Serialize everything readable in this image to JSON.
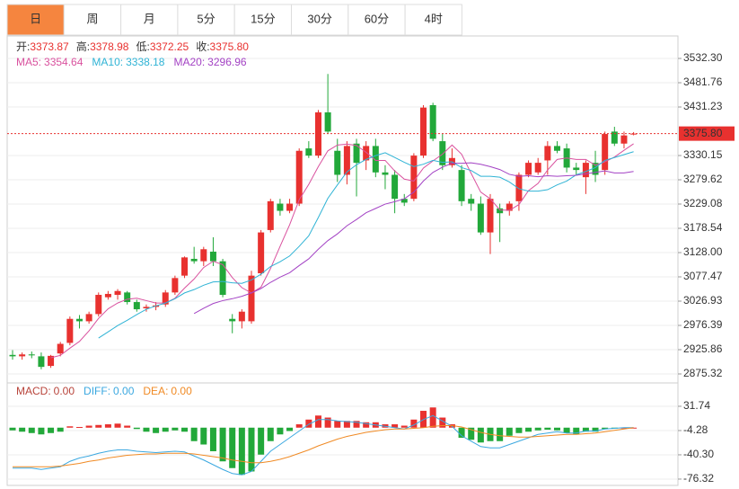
{
  "tabs": {
    "items": [
      "日",
      "周",
      "月",
      "5分",
      "15分",
      "30分",
      "60分",
      "4时"
    ],
    "active": 0
  },
  "chart_data": [
    {
      "type": "candlestick",
      "up_color": "#e8312f",
      "down_color": "#22a83a",
      "ohlc_legend": [
        "开:",
        "高:",
        "低:",
        "收:"
      ],
      "last_close_label": "3375.80",
      "open": [
        2915,
        2912,
        2916,
        2912,
        2892,
        2918,
        2940,
        2990,
        2985,
        3000,
        3035,
        3040,
        3045,
        3025,
        3012,
        3015,
        3020,
        3045,
        3080,
        3115,
        3110,
        3130,
        3110,
        2990,
        2985,
        2985,
        3085,
        3175,
        3230,
        3215,
        3230,
        3345,
        3330,
        3420,
        3340,
        3290,
        3355,
        3320,
        3350,
        3295,
        3290,
        3240,
        3240,
        3330,
        3435,
        3360,
        3310,
        3300,
        3240,
        3230,
        3170,
        3220,
        3215,
        3235,
        3290,
        3295,
        3320,
        3350,
        3345,
        3305,
        3285,
        3315,
        3300,
        3380,
        3355,
        3373.87
      ],
      "high": [
        2925,
        2920,
        2922,
        2920,
        2915,
        2942,
        2995,
        2998,
        3005,
        3045,
        3048,
        3052,
        3048,
        3030,
        3020,
        3025,
        3050,
        3080,
        3120,
        3140,
        3140,
        3160,
        3115,
        3000,
        3010,
        3090,
        3175,
        3240,
        3240,
        3240,
        3345,
        3360,
        3425,
        3500,
        3365,
        3360,
        3365,
        3360,
        3365,
        3310,
        3300,
        3250,
        3335,
        3435,
        3440,
        3375,
        3345,
        3310,
        3250,
        3245,
        3250,
        3230,
        3235,
        3295,
        3320,
        3325,
        3360,
        3360,
        3355,
        3315,
        3320,
        3340,
        3380,
        3390,
        3380,
        3378.98
      ],
      "low": [
        2905,
        2905,
        2908,
        2885,
        2888,
        2912,
        2935,
        2970,
        2980,
        2995,
        3030,
        3030,
        3020,
        3005,
        3005,
        3008,
        3015,
        3040,
        3075,
        3105,
        3100,
        3100,
        3035,
        2960,
        2970,
        2980,
        3080,
        3170,
        3205,
        3210,
        3225,
        3325,
        3325,
        3375,
        3275,
        3270,
        3245,
        3300,
        3285,
        3260,
        3210,
        3225,
        3235,
        3325,
        3360,
        3300,
        3305,
        3225,
        3215,
        3165,
        3125,
        3150,
        3205,
        3215,
        3285,
        3290,
        3290,
        3335,
        3295,
        3290,
        3250,
        3275,
        3290,
        3350,
        3345,
        3372.25
      ],
      "close": [
        2912,
        2916,
        2914,
        2890,
        2913,
        2938,
        2990,
        2985,
        3000,
        3040,
        3042,
        3048,
        3025,
        3010,
        3015,
        3018,
        3045,
        3075,
        3118,
        3110,
        3135,
        3110,
        3040,
        2985,
        3005,
        3080,
        3170,
        3235,
        3215,
        3230,
        3340,
        3330,
        3420,
        3380,
        3290,
        3350,
        3315,
        3350,
        3295,
        3290,
        3240,
        3232,
        3330,
        3430,
        3365,
        3310,
        3325,
        3235,
        3230,
        3170,
        3240,
        3210,
        3230,
        3290,
        3315,
        3315,
        3350,
        3340,
        3305,
        3300,
        3315,
        3290,
        3375,
        3355,
        3372,
        3375.8
      ],
      "series": [
        {
          "name": "MA5:",
          "color": "#d9519e",
          "values": [
            null,
            null,
            null,
            null,
            2909,
            2914,
            2929,
            2943,
            2965,
            2991,
            3011,
            3023,
            3031,
            3033,
            3028,
            3023,
            3023,
            3033,
            3054,
            3073,
            3097,
            3110,
            3103,
            3076,
            3055,
            3044,
            3056,
            3095,
            3141,
            3186,
            3238,
            3270,
            3307,
            3340,
            3352,
            3354,
            3351,
            3337,
            3320,
            3320,
            3298,
            3281,
            3277,
            3304,
            3319,
            3333,
            3352,
            3333,
            3293,
            3254,
            3240,
            3217,
            3216,
            3228,
            3257,
            3272,
            3300,
            3322,
            3325,
            3322,
            3322,
            3310,
            3317,
            3327,
            3341,
            3354.64
          ]
        },
        {
          "name": "MA10:",
          "color": "#2fb3d5",
          "values": [
            null,
            null,
            null,
            null,
            null,
            null,
            null,
            null,
            null,
            2950,
            2963,
            2976,
            2987,
            2999,
            3010,
            3017,
            3023,
            3032,
            3044,
            3051,
            3060,
            3067,
            3068,
            3065,
            3064,
            3071,
            3083,
            3099,
            3109,
            3121,
            3141,
            3163,
            3201,
            3241,
            3269,
            3296,
            3311,
            3322,
            3330,
            3336,
            3326,
            3316,
            3307,
            3312,
            3320,
            3316,
            3317,
            3305,
            3299,
            3287,
            3287,
            3285,
            3275,
            3261,
            3256,
            3256,
            3259,
            3269,
            3277,
            3290,
            3297,
            3305,
            3320,
            3326,
            3332,
            3338.18
          ]
        },
        {
          "name": "MA20:",
          "color": "#a342c4",
          "values": [
            null,
            null,
            null,
            null,
            null,
            null,
            null,
            null,
            null,
            null,
            null,
            null,
            null,
            null,
            null,
            null,
            null,
            null,
            null,
            3001,
            3012,
            3022,
            3028,
            3032,
            3037,
            3044,
            3053,
            3066,
            3077,
            3086,
            3101,
            3115,
            3135,
            3153,
            3167,
            3184,
            3197,
            3211,
            3220,
            3229,
            3234,
            3240,
            3254,
            3277,
            3295,
            3306,
            3314,
            3314,
            3315,
            3312,
            3307,
            3301,
            3291,
            3287,
            3288,
            3286,
            3288,
            3287,
            3288,
            3289,
            3292,
            3295,
            3298,
            3294,
            3294,
            3296.96
          ]
        }
      ],
      "ylim": [
        2856.6,
        3575.4
      ],
      "yticks": [
        {
          "value": 3532.3,
          "label": "3532.30"
        },
        3481.76,
        3431.23,
        3330.15,
        3279.62,
        3229.08,
        3178.54,
        {
          "value": 3128,
          "label": "3128.00"
        },
        3077.47,
        3026.93,
        2976.39,
        2925.86,
        2875.32
      ],
      "grid": true
    },
    {
      "type": "macd",
      "up_color": "#e8312f",
      "down_color": "#22a83a",
      "series": [
        {
          "name": "MACD:",
          "color": "#b8433a",
          "value_label": "0.00",
          "values": [
            -4,
            -6,
            -8,
            -10,
            -8,
            -6,
            2,
            1,
            3,
            4,
            5,
            6,
            3,
            -2,
            -6,
            -8,
            -6,
            -4,
            -6,
            -20,
            -25,
            -35,
            -50,
            -60,
            -70,
            -65,
            -40,
            -20,
            -10,
            -5,
            5,
            12,
            18,
            15,
            10,
            10,
            10,
            8,
            8,
            5,
            5,
            3,
            12,
            25,
            30,
            15,
            5,
            -15,
            -18,
            -22,
            -20,
            -20,
            -12,
            -8,
            -6,
            -4,
            -3,
            -4,
            -8,
            -10,
            -6,
            -6,
            -2,
            -1,
            0,
            0
          ]
        },
        {
          "name": "DIFF:",
          "color": "#3ba8e0",
          "value_label": "0.00",
          "values": [
            -60,
            -60,
            -60,
            -62,
            -60,
            -58,
            -50,
            -45,
            -42,
            -38,
            -35,
            -33,
            -33,
            -35,
            -36,
            -37,
            -36,
            -35,
            -36,
            -42,
            -48,
            -55,
            -62,
            -68,
            -70,
            -65,
            -50,
            -35,
            -25,
            -15,
            -5,
            5,
            12,
            12,
            10,
            9,
            8,
            6,
            4,
            2,
            0,
            -2,
            4,
            12,
            18,
            10,
            2,
            -12,
            -20,
            -28,
            -30,
            -30,
            -25,
            -20,
            -15,
            -10,
            -8,
            -6,
            -8,
            -8,
            -5,
            -5,
            -2,
            -1,
            0,
            0
          ]
        },
        {
          "name": "DEA:",
          "color": "#f08a24",
          "value_label": "0.00",
          "values": [
            -58,
            -58,
            -58,
            -58,
            -58,
            -57,
            -55,
            -53,
            -50,
            -48,
            -45,
            -43,
            -41,
            -40,
            -39,
            -39,
            -38,
            -38,
            -38,
            -39,
            -41,
            -43,
            -45,
            -48,
            -50,
            -52,
            -52,
            -50,
            -47,
            -43,
            -38,
            -33,
            -27,
            -22,
            -17,
            -13,
            -10,
            -7,
            -5,
            -3,
            -2,
            -2,
            -1,
            0,
            2,
            3,
            3,
            1,
            -3,
            -7,
            -10,
            -12,
            -13,
            -14,
            -14,
            -13,
            -12,
            -11,
            -10,
            -10,
            -9,
            -8,
            -6,
            -4,
            -2,
            0
          ]
        }
      ],
      "ylim": [
        -85.7,
        66.4
      ],
      "yticks": [
        31.74,
        -4.28,
        {
          "value": -40.3,
          "label": "-40.30"
        },
        -76.32
      ],
      "grid": true
    }
  ]
}
